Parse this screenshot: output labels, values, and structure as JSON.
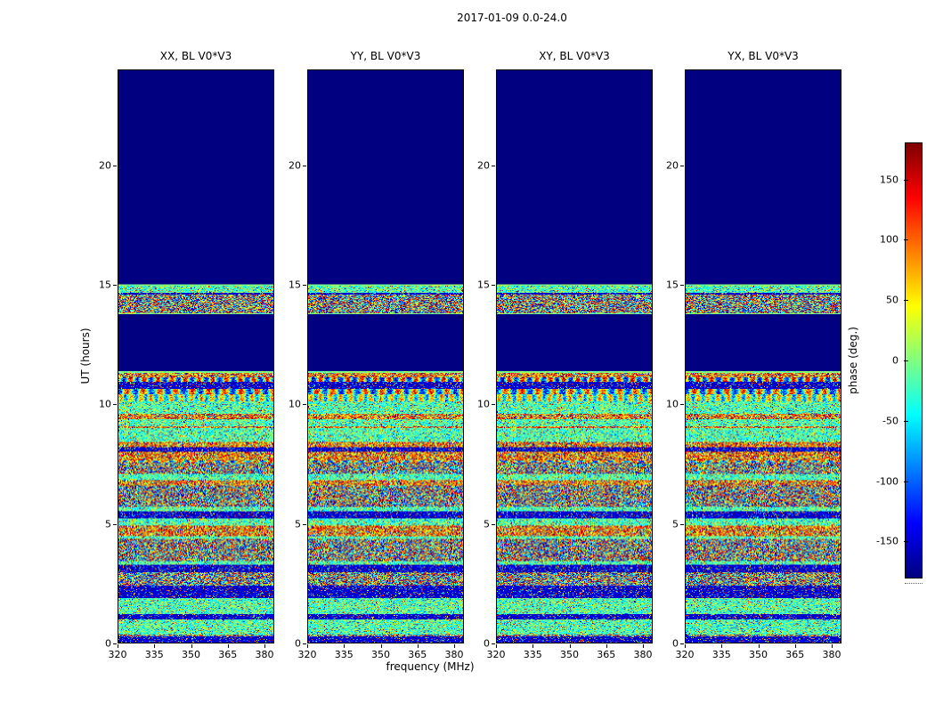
{
  "chart_data": {
    "type": "heatmap",
    "title": "2017-01-09 0.0-24.0",
    "panels": [
      {
        "title": "XX, BL V0*V3"
      },
      {
        "title": "YY, BL V0*V3"
      },
      {
        "title": "XY, BL V0*V3"
      },
      {
        "title": "YX, BL V0*V3"
      }
    ],
    "xlabel": "frequency (MHz)",
    "ylabel": "UT (hours)",
    "x_range": [
      320,
      384
    ],
    "y_range": [
      0,
      24
    ],
    "x_ticks": [
      320,
      335,
      350,
      365,
      380
    ],
    "y_ticks": [
      0,
      5,
      10,
      15,
      20
    ],
    "colormap": "jet",
    "colorbar": {
      "label": "phase (deg.)",
      "ticks": [
        150,
        100,
        50,
        0,
        -50,
        -100,
        -150
      ],
      "range": [
        -180,
        180
      ]
    },
    "regions": [
      {
        "y_from": 0.0,
        "y_to": 11.38,
        "kind": "noise"
      },
      {
        "y_from": 11.38,
        "y_to": 13.78,
        "kind": "flat",
        "value": -180
      },
      {
        "y_from": 13.78,
        "y_to": 15.05,
        "kind": "noise"
      },
      {
        "y_from": 15.05,
        "y_to": 24.0,
        "kind": "flat",
        "value": -180
      }
    ]
  }
}
